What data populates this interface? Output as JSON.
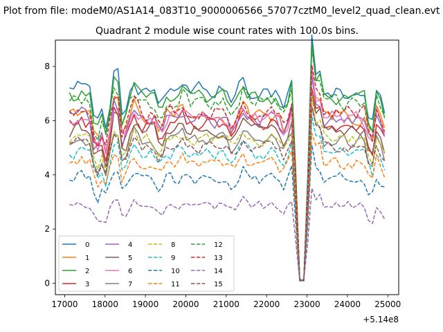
{
  "chart_data": {
    "type": "line",
    "figure_title": "Plot from file: modeM0/AS1A14_083T10_9000006566_57077cztM0_level2_quad_clean.evt",
    "title": "Quadrant 2 module wise count rates with 100.0s bins.",
    "xlabel": "",
    "ylabel": "",
    "x_offset_label": "+5.14e8",
    "xlim": [
      16770,
      25270
    ],
    "ylim": [
      -0.42,
      8.97
    ],
    "x_ticks": [
      17000,
      18000,
      19000,
      20000,
      21000,
      22000,
      23000,
      24000,
      25000
    ],
    "y_ticks": [
      0,
      2,
      4,
      6,
      8
    ],
    "x_tick_labels": [
      "17000",
      "18000",
      "19000",
      "20000",
      "21000",
      "22000",
      "23000",
      "24000",
      "25000"
    ],
    "y_tick_labels": [
      "0",
      "2",
      "4",
      "6",
      "8"
    ],
    "x_start": 17120,
    "x_step": 100,
    "legend_position": "lower-left",
    "dip_center": 22870,
    "series": [
      {
        "name": "0",
        "color": "#1f77b4",
        "dash": "solid",
        "level": 7.1,
        "noise": 0.25
      },
      {
        "name": "1",
        "color": "#ff7f0e",
        "dash": "solid",
        "level": 6.2,
        "noise": 0.26
      },
      {
        "name": "2",
        "color": "#2ca02c",
        "dash": "solid",
        "level": 6.85,
        "noise": 0.26
      },
      {
        "name": "3",
        "color": "#d62728",
        "dash": "solid",
        "level": 5.8,
        "noise": 0.25
      },
      {
        "name": "4",
        "color": "#9467bd",
        "dash": "solid",
        "level": 6.05,
        "noise": 0.25
      },
      {
        "name": "5",
        "color": "#8c564b",
        "dash": "solid",
        "level": 5.6,
        "noise": 0.24
      },
      {
        "name": "6",
        "color": "#e377c2",
        "dash": "solid",
        "level": 6.1,
        "noise": 0.25
      },
      {
        "name": "7",
        "color": "#7f7f7f",
        "dash": "solid",
        "level": 5.25,
        "noise": 0.24
      },
      {
        "name": "8",
        "color": "#bcbd22",
        "dash": "dashed",
        "level": 5.3,
        "noise": 0.22
      },
      {
        "name": "9",
        "color": "#17becf",
        "dash": "dashed",
        "level": 4.8,
        "noise": 0.22
      },
      {
        "name": "10",
        "color": "#1f77b4",
        "dash": "dashed",
        "level": 3.85,
        "noise": 0.22
      },
      {
        "name": "11",
        "color": "#ff7f0e",
        "dash": "dashed",
        "level": 4.45,
        "noise": 0.22
      },
      {
        "name": "12",
        "color": "#2ca02c",
        "dash": "dashed",
        "level": 6.7,
        "noise": 0.24
      },
      {
        "name": "13",
        "color": "#d62728",
        "dash": "dashed",
        "level": 6.3,
        "noise": 0.24
      },
      {
        "name": "14",
        "color": "#9467bd",
        "dash": "dashed",
        "level": 2.85,
        "noise": 0.16
      },
      {
        "name": "15",
        "color": "#8c564b",
        "dash": "dashed",
        "level": 5.05,
        "noise": 0.22
      }
    ]
  }
}
